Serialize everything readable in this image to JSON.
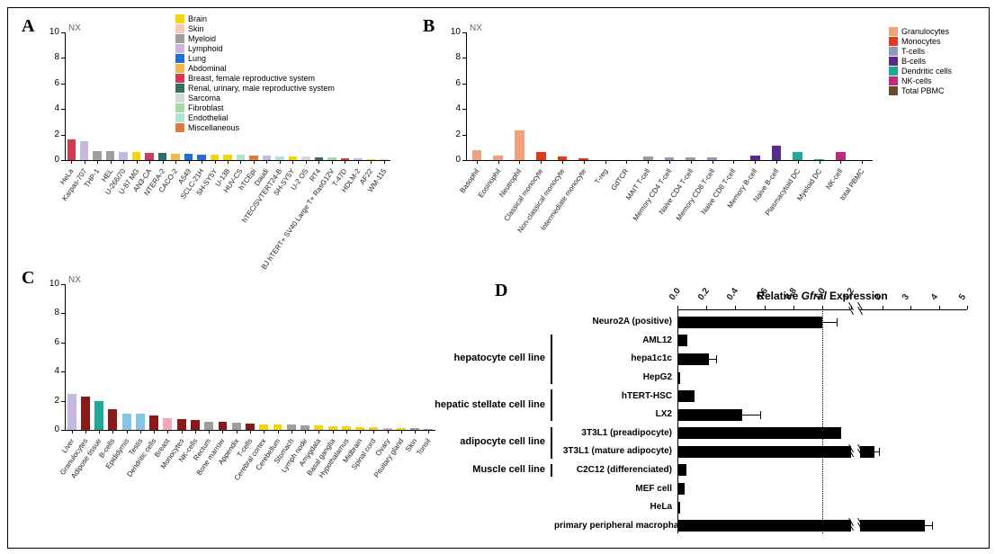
{
  "legendA": {
    "items": [
      {
        "label": "Brain",
        "color": "#f4d40a"
      },
      {
        "label": "Skin",
        "color": "#f7c8b6"
      },
      {
        "label": "Myeloid",
        "color": "#9e9e9e"
      },
      {
        "label": "Lymphoid",
        "color": "#c6b8e0"
      },
      {
        "label": "Lung",
        "color": "#1f6fd0"
      },
      {
        "label": "Abdominal",
        "color": "#f2b84a"
      },
      {
        "label": "Breast, female reproductive system",
        "color": "#d43a55"
      },
      {
        "label": "Renal, urinary, male reproductive system",
        "color": "#2f6f5f"
      },
      {
        "label": "Sarcoma",
        "color": "#d8d8d8"
      },
      {
        "label": "Fibroblast",
        "color": "#a6dba0"
      },
      {
        "label": "Endothelial",
        "color": "#b2e2d2"
      },
      {
        "label": "Miscellaneous",
        "color": "#e07b3a"
      }
    ]
  },
  "legendB": {
    "items": [
      {
        "label": "Granulocytes",
        "color": "#f2a27a"
      },
      {
        "label": "Monocytes",
        "color": "#e03a1a"
      },
      {
        "label": "T-cells",
        "color": "#8e9bb8"
      },
      {
        "label": "B-cells",
        "color": "#5a2a8a"
      },
      {
        "label": "Dendritic cells",
        "color": "#1fa896"
      },
      {
        "label": "NK-cells",
        "color": "#c02a7a"
      },
      {
        "label": "Total PBMC",
        "color": "#6b4a2a"
      }
    ]
  },
  "chartA": {
    "type": "bar",
    "ytitle": "NX",
    "ylim": [
      0,
      10
    ],
    "ytick_step": 2,
    "title_fontsize": 10,
    "bg": "#ffffff",
    "categories": [
      "HeLa",
      "Karpas-707",
      "THP-1",
      "HEL",
      "U-266/70",
      "U-87 MG",
      "AN3-CA",
      "NTERA-2",
      "CACO-2",
      "A549",
      "SCLC-21H",
      "SH-SY5Y",
      "U-138",
      "HUV-CS",
      "hTCEpi",
      "Daudi",
      "hTEC/SVTERT24-B",
      "SH-SY5Y",
      "U-2 OS",
      "RT4",
      "BJ hTERT+ SV40 Large T+ RasG12V",
      "T-47D",
      "HDLM-2",
      "AF22",
      "WM-115"
    ],
    "values": [
      1.6,
      1.5,
      0.7,
      0.7,
      0.65,
      0.6,
      0.55,
      0.55,
      0.5,
      0.5,
      0.45,
      0.45,
      0.4,
      0.4,
      0.35,
      0.35,
      0.3,
      0.3,
      0.25,
      0.2,
      0.2,
      0.15,
      0.12,
      0.1,
      0.08
    ],
    "bar_colors": [
      "#d43a55",
      "#c6b8e0",
      "#9e9e9e",
      "#9e9e9e",
      "#c6b8e0",
      "#f4d40a",
      "#d43a55",
      "#2f6f5f",
      "#f2b84a",
      "#1f6fd0",
      "#1f6fd0",
      "#f4d40a",
      "#f4d40a",
      "#b2e2d2",
      "#e07b3a",
      "#c6b8e0",
      "#b2e2d2",
      "#f4d40a",
      "#d8d8d8",
      "#2f6f5f",
      "#a6dba0",
      "#d43a55",
      "#c6b8e0",
      "#f4d40a",
      "#f7c8b6"
    ],
    "bar_width": 0.65
  },
  "chartB": {
    "type": "bar",
    "ytitle": "NX",
    "ylim": [
      0,
      10
    ],
    "ytick_step": 2,
    "bg": "#ffffff",
    "categories": [
      "Basophil",
      "Eosinophil",
      "Neutrophil",
      "Classical monocyte",
      "Non-classical monocyte",
      "Intermediate monocyte",
      "T-reg",
      "GdTCR",
      "MAIT T-cell",
      "Memory CD4 T-cell",
      "Naive CD4 T-cell",
      "Memory CD8 T-cell",
      "Naive CD8 T-cell",
      "Memory B-cell",
      "Naive B-cell",
      "Plasmacytoid DC",
      "Myeloid DC",
      "NK-cell",
      "total PBMC"
    ],
    "values": [
      0.8,
      0.35,
      2.3,
      0.65,
      0.3,
      0.12,
      0.0,
      0.0,
      0.28,
      0.22,
      0.2,
      0.18,
      0.0,
      0.35,
      1.1,
      0.6,
      0.1,
      0.6,
      0.0
    ],
    "bar_colors": [
      "#f2a27a",
      "#f2a27a",
      "#f2a27a",
      "#e03a1a",
      "#e03a1a",
      "#e03a1a",
      "#8e9bb8",
      "#8e9bb8",
      "#8e9bb8",
      "#8e9bb8",
      "#8e9bb8",
      "#8e9bb8",
      "#8e9bb8",
      "#5a2a8a",
      "#5a2a8a",
      "#1fa896",
      "#1fa896",
      "#c02a7a",
      "#6b4a2a"
    ],
    "bar_width": 0.45
  },
  "chartC": {
    "type": "bar",
    "ytitle": "NX",
    "ylim": [
      0,
      10
    ],
    "ytick_step": 2,
    "bg": "#ffffff",
    "categories": [
      "Liver",
      "Granulocytes",
      "Adipose tissue",
      "B-cells",
      "Epididymis",
      "Testis",
      "Dendritic cells",
      "Breast",
      "Monocytes",
      "NK-cells",
      "Rectum",
      "Bone marrow",
      "Appendix",
      "T-cells",
      "Cerebral cortex",
      "Cerebellum",
      "Stomach",
      "Lymph node",
      "Amygdala",
      "Basal ganglia",
      "Hypothalamus",
      "Midbrain",
      "Spinal cord",
      "Ovary",
      "Pituitary gland",
      "Skin",
      "Tonsil"
    ],
    "values": [
      2.45,
      2.3,
      2.0,
      1.4,
      1.1,
      1.1,
      1.0,
      0.8,
      0.75,
      0.65,
      0.55,
      0.55,
      0.5,
      0.45,
      0.4,
      0.4,
      0.35,
      0.3,
      0.28,
      0.25,
      0.22,
      0.2,
      0.18,
      0.15,
      0.12,
      0.1,
      0.08
    ],
    "bar_colors": [
      "#c6b8e0",
      "#8a1a1a",
      "#1fa896",
      "#8a1a1a",
      "#87c5e8",
      "#87c5e8",
      "#8a1a1a",
      "#f2a6b8",
      "#8a1a1a",
      "#8a1a1a",
      "#9e9e9e",
      "#8a1a1a",
      "#9e9e9e",
      "#8a1a1a",
      "#f4d40a",
      "#f4d40a",
      "#9e9e9e",
      "#9e9e9e",
      "#f4d40a",
      "#f4d40a",
      "#f4d40a",
      "#f4d40a",
      "#f4d40a",
      "#f2a6b8",
      "#f4d40a",
      "#9e9e9e",
      "#9e9e9e"
    ],
    "bar_width": 0.65
  },
  "chartD": {
    "type": "hbar",
    "title": "Relative Gfral Expression",
    "title_fontsize": 12,
    "title_italic_word": "Gfral",
    "split_at": 1.2,
    "left_range": [
      0.0,
      1.2
    ],
    "left_ticks": [
      0.0,
      0.2,
      0.4,
      0.6,
      0.8,
      1.0,
      1.2
    ],
    "right_range": [
      1.2,
      5
    ],
    "right_ticks": [
      2,
      3,
      4,
      5
    ],
    "ref_line": 1.0,
    "bar_color": "#000000",
    "rows": [
      {
        "label": "Neuro2A (positive)",
        "value": 1.0,
        "err": 0.1,
        "group": null,
        "bold": true
      },
      {
        "label": "AML12",
        "value": 0.07,
        "err": 0,
        "group": "hepatocyte"
      },
      {
        "label": "hepa1c1c",
        "value": 0.22,
        "err": 0.05,
        "group": "hepatocyte"
      },
      {
        "label": "HepG2",
        "value": 0.02,
        "err": 0,
        "group": "hepatocyte"
      },
      {
        "label": "hTERT-HSC",
        "value": 0.12,
        "err": 0,
        "group": "hstellate"
      },
      {
        "label": "LX2",
        "value": 0.45,
        "err": 0.12,
        "group": "hstellate"
      },
      {
        "label": "3T3L1 (preadipocyte)",
        "value": 1.13,
        "err": 0,
        "group": "adipo"
      },
      {
        "label": "3T3L1 (mature adipocyte)",
        "value": 1.7,
        "err": 0.15,
        "group": "adipo"
      },
      {
        "label": "C2C12 (differenciated)",
        "value": 0.06,
        "err": 0,
        "group": "muscle"
      },
      {
        "label": "MEF cell",
        "value": 0.05,
        "err": 0,
        "group": null
      },
      {
        "label": "HeLa",
        "value": 0.02,
        "err": 0,
        "group": null
      },
      {
        "label": "primary peripheral macrophage",
        "value": 3.5,
        "err": 0.25,
        "group": null,
        "bold": true
      }
    ],
    "groups": {
      "hepatocyte": {
        "label": "hepatocyte cell line",
        "from": 1,
        "to": 3
      },
      "hstellate": {
        "label": "hepatic stellate cell line",
        "from": 4,
        "to": 5
      },
      "adipo": {
        "label": "adipocyte cell line",
        "from": 6,
        "to": 7
      },
      "muscle": {
        "label": "Muscle cell line",
        "from": 8,
        "to": 8
      }
    },
    "label_fontsize": 10
  },
  "labels": {
    "A": "A",
    "B": "B",
    "C": "C",
    "D": "D"
  }
}
